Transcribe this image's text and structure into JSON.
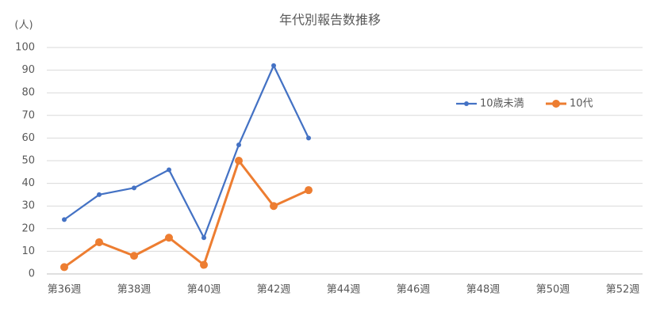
{
  "chart_data": {
    "type": "line",
    "title": "年代別報告数推移",
    "y_label": "(人)",
    "categories": [
      "第36週",
      null,
      "第38週",
      null,
      "第40週",
      null,
      "第42週",
      null,
      "第44週",
      null,
      "第46週",
      null,
      "第48週",
      null,
      "第50週",
      null,
      "第52週"
    ],
    "series": [
      {
        "name": "10歳未満",
        "color": "#4472c4",
        "values": [
          24,
          35,
          38,
          46,
          16,
          57,
          92,
          60,
          null,
          null,
          null,
          null,
          null,
          null,
          null,
          null,
          null
        ]
      },
      {
        "name": "10代",
        "color": "#ed7d31",
        "values": [
          3,
          14,
          8,
          16,
          4,
          50,
          30,
          37,
          null,
          null,
          null,
          null,
          null,
          null,
          null,
          null,
          null
        ]
      }
    ],
    "ylim": [
      0,
      100
    ],
    "yticks": [
      0,
      10,
      20,
      30,
      40,
      50,
      60,
      70,
      80,
      90,
      100
    ],
    "grid": true,
    "legend": "right"
  }
}
